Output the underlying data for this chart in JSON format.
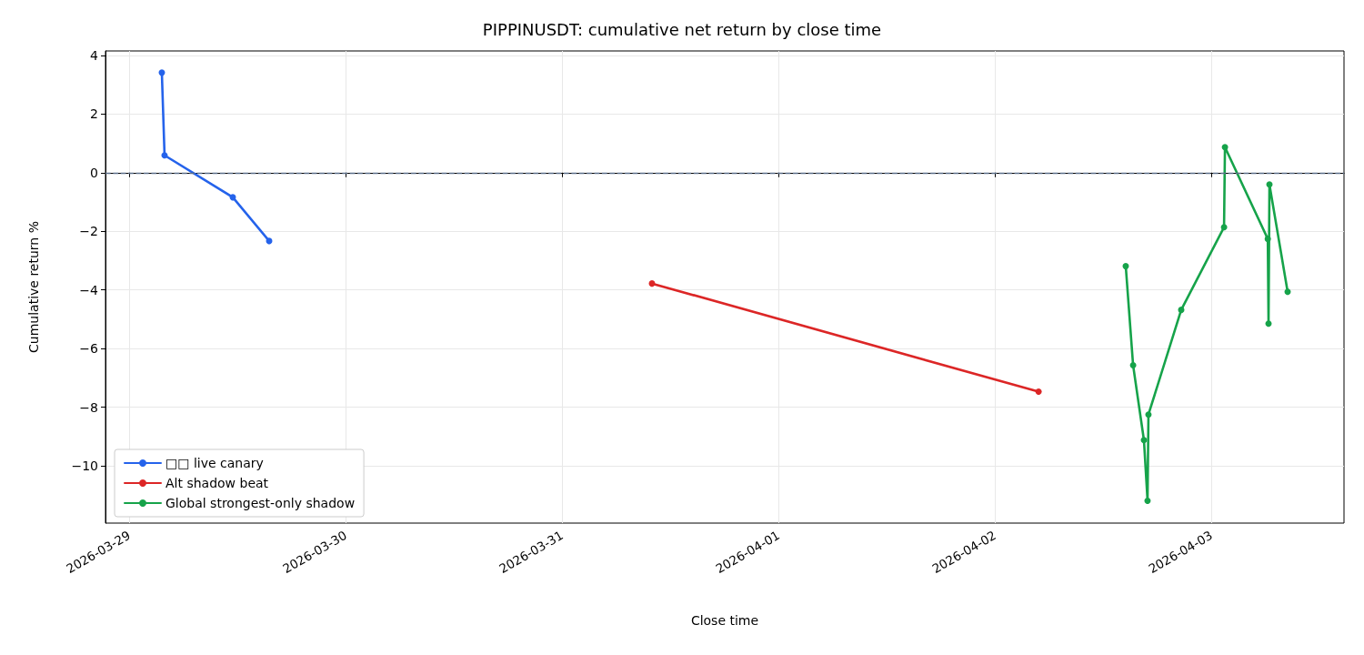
{
  "chart_data": {
    "type": "line",
    "title": "PIPPINUSDT: cumulative net return by close time",
    "xlabel": "Close time",
    "ylabel": "Cumulative return %",
    "series": [
      {
        "name": "□□ live canary",
        "color": "#2563eb",
        "x": [
          "2026-03-29T03:38",
          "2026-03-29T03:56",
          "2026-03-29T11:30",
          "2026-03-29T15:32"
        ],
        "values": [
          3.41,
          0.59,
          -0.84,
          -2.33
        ]
      },
      {
        "name": "Alt shadow beat",
        "color": "#dc2626",
        "x": [
          "2026-03-31T09:59",
          "2026-04-02T04:51"
        ],
        "values": [
          -3.78,
          -7.47
        ]
      },
      {
        "name": "Global strongest-only shadow",
        "color": "#16a34a",
        "x": [
          "2026-04-02T14:31",
          "2026-04-02T15:20",
          "2026-04-02T16:32",
          "2026-04-02T16:56",
          "2026-04-02T17:02",
          "2026-04-02T20:40",
          "2026-04-03T01:25",
          "2026-04-03T01:31",
          "2026-04-03T06:16",
          "2026-04-03T06:21",
          "2026-04-03T06:27",
          "2026-04-03T08:28"
        ],
        "values": [
          -3.19,
          -6.57,
          -9.12,
          -11.19,
          -8.25,
          -4.68,
          -1.86,
          0.87,
          -2.26,
          -5.15,
          -0.4,
          -4.06
        ]
      }
    ],
    "xlim": [
      "2026-03-28T21:23",
      "2026-04-03T14:43"
    ],
    "xticks": [
      "2026-03-29",
      "2026-03-30",
      "2026-03-31",
      "2026-04-01",
      "2026-04-02",
      "2026-04-03"
    ],
    "ylim": [
      -11.95,
      4.15
    ],
    "yticks": [
      -10,
      -8,
      -6,
      -4,
      -2,
      0,
      2,
      4
    ],
    "ref_lines": [
      {
        "axis": "y",
        "value": 0,
        "color": "#5c6f8a",
        "line_style": "dashed"
      }
    ],
    "grid": true,
    "legend": "bottom left",
    "marker": "circle",
    "line_style": "solid"
  }
}
